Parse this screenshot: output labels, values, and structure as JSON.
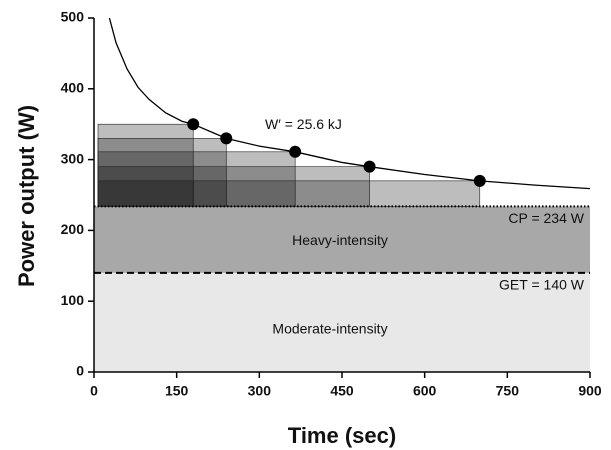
{
  "chart_data": {
    "type": "power-duration",
    "x_label": "Time (sec)",
    "y_label": "Power output (W)",
    "xlim": [
      0,
      900
    ],
    "ylim": [
      0,
      500
    ],
    "xticks": [
      0,
      150,
      300,
      450,
      600,
      750,
      900
    ],
    "yticks": [
      0,
      100,
      200,
      300,
      400,
      500
    ],
    "zones": [
      {
        "name": "Moderate-intensity",
        "range": [
          0,
          140
        ],
        "color": "#e8e8e8"
      },
      {
        "name": "Heavy-intensity",
        "range": [
          140,
          234
        ],
        "color": "#a8a8a8"
      }
    ],
    "thresholds": [
      {
        "label": "CP = 234 W",
        "value": 234,
        "style": "dotted"
      },
      {
        "label": "GET = 140 W",
        "value": 140,
        "style": "dashed"
      }
    ],
    "curve": {
      "x": [
        28,
        40,
        60,
        80,
        100,
        130,
        160,
        180,
        240,
        300,
        365,
        450,
        500,
        600,
        700,
        800,
        900
      ],
      "values": [
        500,
        465,
        428,
        402,
        385,
        366,
        354,
        350,
        330,
        319,
        311,
        296,
        290,
        279,
        270,
        264,
        259
      ],
      "color": "#000000"
    },
    "points": {
      "x": [
        180,
        240,
        365,
        500,
        700
      ],
      "values": [
        350,
        330,
        311,
        290,
        270
      ],
      "color": "#000000"
    },
    "annotation": "W′ = 25.6 kJ"
  }
}
